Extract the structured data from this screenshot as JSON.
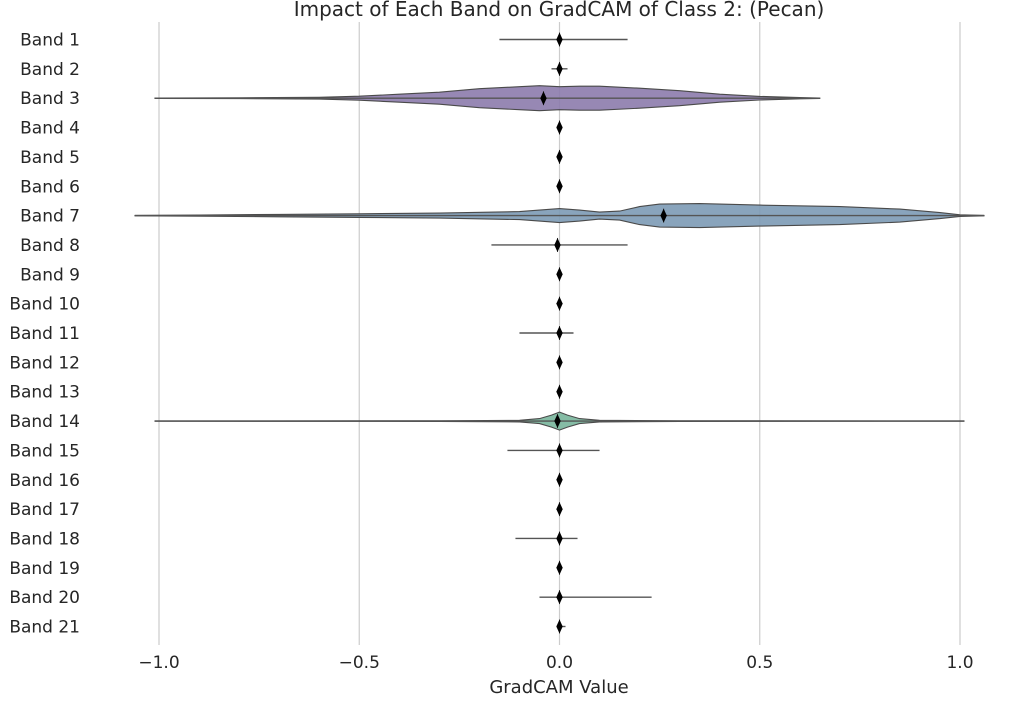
{
  "chart_data": {
    "type": "violin",
    "title": "Impact of Each Band on GradCAM of Class 2: (Pecan)",
    "xlabel": "GradCAM Value",
    "ylabel": "",
    "xlim": [
      -1.1,
      1.06
    ],
    "xticks": [
      -1.0,
      -0.5,
      0.0,
      0.5,
      1.0
    ],
    "xtick_labels": [
      "−1.0",
      "−0.5",
      "0.0",
      "0.5",
      "1.0"
    ],
    "grid": "vertical",
    "categories": [
      "Band 1",
      "Band 2",
      "Band 3",
      "Band 4",
      "Band 5",
      "Band 6",
      "Band 7",
      "Band 8",
      "Band 9",
      "Band 10",
      "Band 11",
      "Band 12",
      "Band 13",
      "Band 14",
      "Band 15",
      "Band 16",
      "Band 17",
      "Band 18",
      "Band 19",
      "Band 20",
      "Band 21"
    ],
    "bands": [
      {
        "label": "Band 1",
        "min": -0.15,
        "max": 0.17,
        "mean": 0.0
      },
      {
        "label": "Band 2",
        "min": -0.02,
        "max": 0.02,
        "mean": 0.0
      },
      {
        "label": "Band 3",
        "min": -1.01,
        "max": 0.65,
        "mean": -0.04,
        "color": "#8c7bac",
        "density": [
          [
            -1.01,
            0.2
          ],
          [
            -0.8,
            0.4
          ],
          [
            -0.6,
            0.9
          ],
          [
            -0.5,
            2.0
          ],
          [
            -0.4,
            4.0
          ],
          [
            -0.3,
            6.0
          ],
          [
            -0.2,
            9.5
          ],
          [
            -0.1,
            11.5
          ],
          [
            -0.05,
            12.5
          ],
          [
            0.0,
            11.5
          ],
          [
            0.05,
            12.0
          ],
          [
            0.1,
            12.0
          ],
          [
            0.2,
            10.0
          ],
          [
            0.3,
            7.5
          ],
          [
            0.4,
            4.0
          ],
          [
            0.5,
            1.8
          ],
          [
            0.6,
            0.6
          ],
          [
            0.65,
            0.2
          ]
        ]
      },
      {
        "label": "Band 4",
        "min": 0.0,
        "max": 0.0,
        "mean": 0.0
      },
      {
        "label": "Band 5",
        "min": 0.0,
        "max": 0.0,
        "mean": 0.0
      },
      {
        "label": "Band 6",
        "min": 0.0,
        "max": 0.0,
        "mean": 0.0
      },
      {
        "label": "Band 7",
        "min": -1.06,
        "max": 1.06,
        "mean": 0.26,
        "color": "#7c9ab5",
        "density": [
          [
            -1.06,
            0.2
          ],
          [
            -0.9,
            0.6
          ],
          [
            -0.7,
            1.2
          ],
          [
            -0.5,
            1.8
          ],
          [
            -0.3,
            2.5
          ],
          [
            -0.1,
            4.0
          ],
          [
            -0.05,
            5.5
          ],
          [
            0.0,
            7.0
          ],
          [
            0.05,
            5.5
          ],
          [
            0.1,
            3.5
          ],
          [
            0.15,
            4.5
          ],
          [
            0.2,
            9.0
          ],
          [
            0.25,
            11.5
          ],
          [
            0.35,
            12.0
          ],
          [
            0.5,
            10.5
          ],
          [
            0.7,
            9.0
          ],
          [
            0.85,
            6.5
          ],
          [
            0.95,
            3.0
          ],
          [
            1.0,
            0.8
          ],
          [
            1.06,
            0.2
          ]
        ]
      },
      {
        "label": "Band 8",
        "min": -0.17,
        "max": 0.17,
        "mean": -0.005
      },
      {
        "label": "Band 9",
        "min": 0.0,
        "max": 0.0,
        "mean": 0.0
      },
      {
        "label": "Band 10",
        "min": 0.0,
        "max": 0.0,
        "mean": 0.0
      },
      {
        "label": "Band 11",
        "min": -0.1,
        "max": 0.035,
        "mean": 0.0
      },
      {
        "label": "Band 12",
        "min": 0.0,
        "max": 0.0,
        "mean": 0.0
      },
      {
        "label": "Band 13",
        "min": 0.0,
        "max": 0.0,
        "mean": 0.0
      },
      {
        "label": "Band 14",
        "min": -1.01,
        "max": 1.01,
        "mean": -0.005,
        "color": "#78b59b",
        "density": [
          [
            -1.01,
            0.1
          ],
          [
            -0.3,
            0.3
          ],
          [
            -0.1,
            0.8
          ],
          [
            -0.05,
            2.5
          ],
          [
            -0.02,
            6.0
          ],
          [
            0.0,
            9.0
          ],
          [
            0.02,
            6.0
          ],
          [
            0.05,
            2.5
          ],
          [
            0.1,
            0.8
          ],
          [
            0.3,
            0.3
          ],
          [
            1.01,
            0.1
          ]
        ]
      },
      {
        "label": "Band 15",
        "min": -0.13,
        "max": 0.1,
        "mean": 0.0
      },
      {
        "label": "Band 16",
        "min": 0.0,
        "max": 0.0,
        "mean": 0.0
      },
      {
        "label": "Band 17",
        "min": 0.0,
        "max": 0.0,
        "mean": 0.0
      },
      {
        "label": "Band 18",
        "min": -0.11,
        "max": 0.045,
        "mean": 0.0
      },
      {
        "label": "Band 19",
        "min": 0.0,
        "max": 0.0,
        "mean": 0.0
      },
      {
        "label": "Band 20",
        "min": -0.05,
        "max": 0.23,
        "mean": 0.0
      },
      {
        "label": "Band 21",
        "min": 0.0,
        "max": 0.015,
        "mean": 0.0
      }
    ]
  }
}
